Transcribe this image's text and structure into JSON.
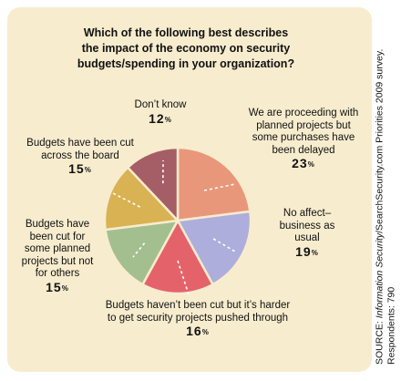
{
  "chart_data": {
    "type": "pie",
    "title": [
      "Which of the following best describes",
      "the impact of the economy on security",
      "budgets/spending in your organization?"
    ],
    "slices": [
      {
        "label": [
          "We are proceeding with",
          "planned projects but",
          "some purchases have",
          "been delayed"
        ],
        "value": 23,
        "color": "#e9977a"
      },
      {
        "label": [
          "No affect–",
          "business as",
          "usual"
        ],
        "value": 19,
        "color": "#adaedc"
      },
      {
        "label": [
          "Budgets haven’t been cut but it’s harder",
          "to get security projects pushed through"
        ],
        "value": 16,
        "color": "#e4636b"
      },
      {
        "label": [
          "Budgets have",
          "been cut for",
          "some planned",
          "projects but not",
          "for others"
        ],
        "value": 15,
        "color": "#a4bf8f"
      },
      {
        "label": [
          "Budgets have been cut",
          "across the board"
        ],
        "value": 15,
        "color": "#d9b253"
      },
      {
        "label": [
          "Don’t know"
        ],
        "value": 12,
        "color": "#a55e66"
      }
    ],
    "value_suffix": "%",
    "source": {
      "prefix": "SOURCE: ",
      "publication": "Information Security",
      "rest": "/SearchSecurity.com Priorities 2009 survey.",
      "respondents": "Respondents: 790"
    }
  }
}
